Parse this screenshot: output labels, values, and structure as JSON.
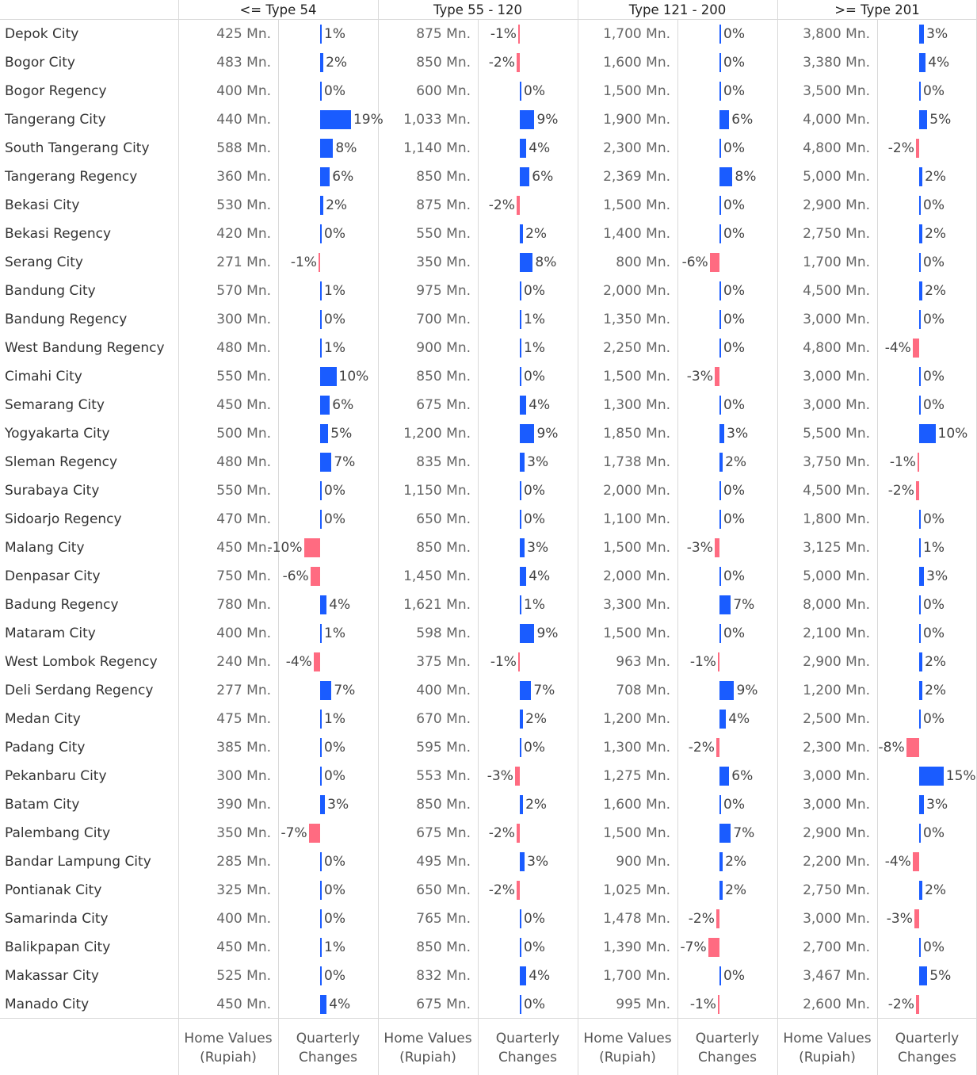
{
  "colors": {
    "positive": "#1a5cff",
    "negative": "#ff6b81",
    "grid": "#d9d9d9"
  },
  "groups": [
    "<= Type 54",
    "Type 55 - 120",
    "Type 121 - 200",
    ">= Type 201"
  ],
  "footer": {
    "home_values": "Home Values\n(Rupiah)",
    "quarterly": "Quarterly\nChanges"
  },
  "chart_data": {
    "type": "table",
    "columns": [
      "Home Values (Rupiah)",
      "Quarterly Changes"
    ],
    "groups": [
      "<= Type 54",
      "Type 55 - 120",
      "Type 121 - 200",
      ">= Type 201"
    ],
    "rows": [
      {
        "city": "Depok City",
        "values": [
          "425 Mn.",
          "875 Mn.",
          "1,700 Mn.",
          "3,800 Mn."
        ],
        "changes": [
          1,
          -1,
          0,
          3
        ]
      },
      {
        "city": "Bogor City",
        "values": [
          "483 Mn.",
          "850 Mn.",
          "1,600 Mn.",
          "3,380 Mn."
        ],
        "changes": [
          2,
          -2,
          0,
          4
        ]
      },
      {
        "city": "Bogor Regency",
        "values": [
          "400 Mn.",
          "600 Mn.",
          "1,500 Mn.",
          "3,500 Mn."
        ],
        "changes": [
          0,
          0,
          0,
          0
        ]
      },
      {
        "city": "Tangerang City",
        "values": [
          "440 Mn.",
          "1,033 Mn.",
          "1,900 Mn.",
          "4,000 Mn."
        ],
        "changes": [
          19,
          9,
          6,
          5
        ]
      },
      {
        "city": "South Tangerang City",
        "values": [
          "588 Mn.",
          "1,140 Mn.",
          "2,300 Mn.",
          "4,800 Mn."
        ],
        "changes": [
          8,
          4,
          0,
          -2
        ]
      },
      {
        "city": "Tangerang Regency",
        "values": [
          "360 Mn.",
          "850 Mn.",
          "2,369 Mn.",
          "5,000 Mn."
        ],
        "changes": [
          6,
          6,
          8,
          2
        ]
      },
      {
        "city": "Bekasi City",
        "values": [
          "530 Mn.",
          "875 Mn.",
          "1,500 Mn.",
          "2,900 Mn."
        ],
        "changes": [
          2,
          -2,
          0,
          0
        ]
      },
      {
        "city": "Bekasi Regency",
        "values": [
          "420 Mn.",
          "550 Mn.",
          "1,400 Mn.",
          "2,750 Mn."
        ],
        "changes": [
          0,
          2,
          0,
          2
        ]
      },
      {
        "city": "Serang City",
        "values": [
          "271 Mn.",
          "350 Mn.",
          "800 Mn.",
          "1,700 Mn."
        ],
        "changes": [
          -1,
          8,
          -6,
          0
        ]
      },
      {
        "city": "Bandung City",
        "values": [
          "570 Mn.",
          "975 Mn.",
          "2,000 Mn.",
          "4,500 Mn."
        ],
        "changes": [
          1,
          0,
          0,
          2
        ]
      },
      {
        "city": "Bandung Regency",
        "values": [
          "300 Mn.",
          "700 Mn.",
          "1,350 Mn.",
          "3,000 Mn."
        ],
        "changes": [
          0,
          1,
          0,
          0
        ]
      },
      {
        "city": "West Bandung Regency",
        "values": [
          "480 Mn.",
          "900 Mn.",
          "2,250 Mn.",
          "4,800 Mn."
        ],
        "changes": [
          1,
          1,
          0,
          -4
        ]
      },
      {
        "city": "Cimahi City",
        "values": [
          "550 Mn.",
          "850 Mn.",
          "1,500 Mn.",
          "3,000 Mn."
        ],
        "changes": [
          10,
          0,
          -3,
          0
        ]
      },
      {
        "city": "Semarang City",
        "values": [
          "450 Mn.",
          "675 Mn.",
          "1,300 Mn.",
          "3,000 Mn."
        ],
        "changes": [
          6,
          4,
          0,
          0
        ]
      },
      {
        "city": "Yogyakarta City",
        "values": [
          "500 Mn.",
          "1,200 Mn.",
          "1,850 Mn.",
          "5,500 Mn."
        ],
        "changes": [
          5,
          9,
          3,
          10
        ]
      },
      {
        "city": "Sleman Regency",
        "values": [
          "480 Mn.",
          "835 Mn.",
          "1,738 Mn.",
          "3,750 Mn."
        ],
        "changes": [
          7,
          3,
          2,
          -1
        ]
      },
      {
        "city": "Surabaya City",
        "values": [
          "550 Mn.",
          "1,150 Mn.",
          "2,000 Mn.",
          "4,500 Mn."
        ],
        "changes": [
          0,
          0,
          0,
          -2
        ]
      },
      {
        "city": "Sidoarjo Regency",
        "values": [
          "470 Mn.",
          "650 Mn.",
          "1,100 Mn.",
          "1,800 Mn."
        ],
        "changes": [
          0,
          0,
          0,
          0
        ]
      },
      {
        "city": "Malang City",
        "values": [
          "450 Mn.",
          "850 Mn.",
          "1,500 Mn.",
          "3,125 Mn."
        ],
        "changes": [
          -10,
          3,
          -3,
          1
        ]
      },
      {
        "city": "Denpasar City",
        "values": [
          "750 Mn.",
          "1,450 Mn.",
          "2,000 Mn.",
          "5,000 Mn."
        ],
        "changes": [
          -6,
          4,
          0,
          3
        ]
      },
      {
        "city": "Badung Regency",
        "values": [
          "780 Mn.",
          "1,621 Mn.",
          "3,300 Mn.",
          "8,000 Mn."
        ],
        "changes": [
          4,
          1,
          7,
          0
        ]
      },
      {
        "city": "Mataram City",
        "values": [
          "400 Mn.",
          "598 Mn.",
          "1,500 Mn.",
          "2,100 Mn."
        ],
        "changes": [
          1,
          9,
          0,
          0
        ]
      },
      {
        "city": "West Lombok Regency",
        "values": [
          "240 Mn.",
          "375 Mn.",
          "963 Mn.",
          "2,900 Mn."
        ],
        "changes": [
          -4,
          -1,
          -1,
          2
        ]
      },
      {
        "city": "Deli Serdang Regency",
        "values": [
          "277 Mn.",
          "400 Mn.",
          "708 Mn.",
          "1,200 Mn."
        ],
        "changes": [
          7,
          7,
          9,
          2
        ]
      },
      {
        "city": "Medan City",
        "values": [
          "475 Mn.",
          "670 Mn.",
          "1,200 Mn.",
          "2,500 Mn."
        ],
        "changes": [
          1,
          2,
          4,
          0
        ]
      },
      {
        "city": "Padang City",
        "values": [
          "385 Mn.",
          "595 Mn.",
          "1,300 Mn.",
          "2,300 Mn."
        ],
        "changes": [
          0,
          0,
          -2,
          -8
        ]
      },
      {
        "city": "Pekanbaru City",
        "values": [
          "300 Mn.",
          "553 Mn.",
          "1,275 Mn.",
          "3,000 Mn."
        ],
        "changes": [
          0,
          -3,
          6,
          15
        ]
      },
      {
        "city": "Batam City",
        "values": [
          "390 Mn.",
          "850 Mn.",
          "1,600 Mn.",
          "3,000 Mn."
        ],
        "changes": [
          3,
          2,
          0,
          3
        ]
      },
      {
        "city": "Palembang City",
        "values": [
          "350 Mn.",
          "675 Mn.",
          "1,500 Mn.",
          "2,900 Mn."
        ],
        "changes": [
          -7,
          -2,
          7,
          0
        ]
      },
      {
        "city": "Bandar Lampung City",
        "values": [
          "285 Mn.",
          "495 Mn.",
          "900 Mn.",
          "2,200 Mn."
        ],
        "changes": [
          0,
          3,
          2,
          -4
        ]
      },
      {
        "city": "Pontianak City",
        "values": [
          "325 Mn.",
          "650 Mn.",
          "1,025 Mn.",
          "2,750 Mn."
        ],
        "changes": [
          0,
          -2,
          2,
          2
        ]
      },
      {
        "city": "Samarinda City",
        "values": [
          "400 Mn.",
          "765 Mn.",
          "1,478 Mn.",
          "3,000 Mn."
        ],
        "changes": [
          0,
          0,
          -2,
          -3
        ]
      },
      {
        "city": "Balikpapan City",
        "values": [
          "450 Mn.",
          "850 Mn.",
          "1,390 Mn.",
          "2,700 Mn."
        ],
        "changes": [
          1,
          0,
          -7,
          0
        ]
      },
      {
        "city": "Makassar City",
        "values": [
          "525 Mn.",
          "832 Mn.",
          "1,700 Mn.",
          "3,467 Mn."
        ],
        "changes": [
          0,
          4,
          0,
          5
        ]
      },
      {
        "city": "Manado City",
        "values": [
          "450 Mn.",
          "675 Mn.",
          "995 Mn.",
          "2,600 Mn."
        ],
        "changes": [
          4,
          0,
          -1,
          -2
        ]
      }
    ]
  }
}
